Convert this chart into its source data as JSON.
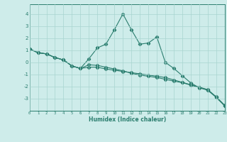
{
  "xlabel": "Humidex (Indice chaleur)",
  "x_values": [
    0,
    1,
    2,
    3,
    4,
    5,
    6,
    7,
    8,
    9,
    10,
    11,
    12,
    13,
    14,
    15,
    16,
    17,
    18,
    19,
    20,
    21,
    22,
    23
  ],
  "line1_y": [
    1.1,
    0.8,
    0.7,
    0.4,
    0.2,
    -0.3,
    -0.5,
    0.3,
    1.2,
    1.5,
    2.7,
    4.0,
    2.7,
    1.5,
    1.6,
    2.1,
    0.0,
    -0.5,
    -1.1,
    -1.7,
    -2.1,
    -2.3,
    -2.9,
    -3.6
  ],
  "line2_y": [
    1.1,
    0.8,
    0.7,
    0.4,
    0.2,
    -0.3,
    -0.5,
    -0.4,
    -0.4,
    -0.55,
    -0.65,
    -0.75,
    -0.85,
    -0.95,
    -1.05,
    -1.15,
    -1.25,
    -1.45,
    -1.65,
    -1.85,
    -2.05,
    -2.25,
    -2.85,
    -3.55
  ],
  "line3_y": [
    1.1,
    0.8,
    0.7,
    0.4,
    0.2,
    -0.3,
    -0.5,
    -0.2,
    -0.25,
    -0.4,
    -0.55,
    -0.7,
    -0.9,
    -1.05,
    -1.15,
    -1.25,
    -1.4,
    -1.55,
    -1.68,
    -1.88,
    -2.08,
    -2.28,
    -2.88,
    -3.58
  ],
  "yticks": [
    -3,
    -2,
    -1,
    0,
    1,
    2,
    3,
    4
  ],
  "ylim": [
    -4.0,
    4.8
  ],
  "xlim": [
    0,
    23
  ],
  "line_color": "#2a7d6e",
  "bg_color": "#ceecea",
  "grid_color": "#a8d4d0",
  "tick_color": "#2a7d6e",
  "label_color": "#2a7d6e"
}
